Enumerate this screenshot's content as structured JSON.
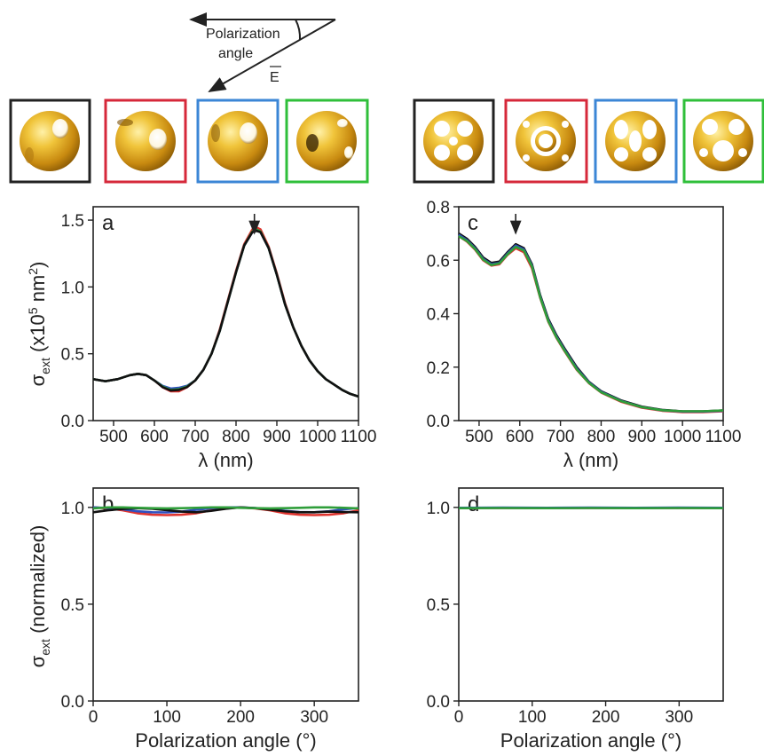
{
  "schematic": {
    "polarization_label_line1": "Polarization",
    "polarization_label_line2": "angle",
    "field_label": "E"
  },
  "thumbnails": {
    "frame_colors": [
      "#222222",
      "#d6283a",
      "#3b86d6",
      "#2fbf3a"
    ]
  },
  "colors": {
    "black": "#111111",
    "red": "#e0342f",
    "blue": "#2f4fc0",
    "green": "#2f9e3a"
  },
  "chart_data": [
    {
      "panel": "a",
      "type": "line",
      "xlabel": "λ (nm)",
      "ylabel_main": "σ",
      "ylabel_sub": "ext",
      "ylabel_rest": " (x10",
      "ylabel_sup": "5",
      "ylabel_unit": " nm",
      "ylabel_sup2": "2",
      "ylabel_end": ")",
      "xlim": [
        450,
        1100
      ],
      "ylim": [
        0,
        1.6
      ],
      "xticks": [
        500,
        600,
        700,
        800,
        900,
        1000,
        1100
      ],
      "yticks": [
        0.0,
        0.5,
        1.0,
        1.5
      ],
      "ytick_labels": [
        "0.0",
        "0.5",
        "1.0",
        "1.5"
      ],
      "arrow_x": 845,
      "series": [
        {
          "color": "#e0342f",
          "x": [
            450,
            480,
            510,
            540,
            560,
            580,
            600,
            620,
            640,
            660,
            680,
            700,
            720,
            740,
            760,
            780,
            800,
            820,
            840,
            850,
            860,
            880,
            900,
            920,
            940,
            960,
            980,
            1000,
            1020,
            1040,
            1060,
            1080,
            1100
          ],
          "y": [
            0.31,
            0.295,
            0.31,
            0.34,
            0.35,
            0.34,
            0.3,
            0.25,
            0.22,
            0.22,
            0.25,
            0.3,
            0.38,
            0.5,
            0.68,
            0.9,
            1.12,
            1.32,
            1.43,
            1.445,
            1.43,
            1.3,
            1.1,
            0.88,
            0.7,
            0.56,
            0.45,
            0.37,
            0.31,
            0.27,
            0.23,
            0.2,
            0.18
          ]
        },
        {
          "color": "#2f4fc0",
          "x": [
            450,
            480,
            510,
            540,
            560,
            580,
            600,
            620,
            640,
            660,
            680,
            700,
            720,
            740,
            760,
            780,
            800,
            820,
            840,
            850,
            860,
            880,
            900,
            920,
            940,
            960,
            980,
            1000,
            1020,
            1040,
            1060,
            1080,
            1100
          ],
          "y": [
            0.31,
            0.295,
            0.31,
            0.34,
            0.35,
            0.34,
            0.3,
            0.26,
            0.24,
            0.245,
            0.26,
            0.3,
            0.38,
            0.5,
            0.67,
            0.89,
            1.11,
            1.31,
            1.41,
            1.425,
            1.41,
            1.29,
            1.09,
            0.87,
            0.7,
            0.56,
            0.45,
            0.37,
            0.31,
            0.27,
            0.23,
            0.2,
            0.18
          ]
        },
        {
          "color": "#2f9e3a",
          "x": [
            450,
            480,
            510,
            540,
            560,
            580,
            600,
            620,
            640,
            660,
            680,
            700,
            720,
            740,
            760,
            780,
            800,
            820,
            840,
            850,
            860,
            880,
            900,
            920,
            940,
            960,
            980,
            1000,
            1020,
            1040,
            1060,
            1080,
            1100
          ],
          "y": [
            0.31,
            0.295,
            0.31,
            0.34,
            0.35,
            0.34,
            0.3,
            0.255,
            0.23,
            0.235,
            0.255,
            0.3,
            0.38,
            0.5,
            0.67,
            0.89,
            1.11,
            1.31,
            1.415,
            1.43,
            1.415,
            1.29,
            1.09,
            0.87,
            0.7,
            0.56,
            0.45,
            0.37,
            0.31,
            0.27,
            0.23,
            0.2,
            0.18
          ]
        },
        {
          "color": "#111111",
          "x": [
            450,
            480,
            510,
            540,
            560,
            580,
            600,
            620,
            640,
            660,
            680,
            700,
            720,
            740,
            760,
            780,
            800,
            820,
            840,
            850,
            860,
            880,
            900,
            920,
            940,
            960,
            980,
            1000,
            1020,
            1040,
            1060,
            1080,
            1100
          ],
          "y": [
            0.31,
            0.295,
            0.31,
            0.34,
            0.35,
            0.34,
            0.3,
            0.25,
            0.225,
            0.23,
            0.25,
            0.3,
            0.38,
            0.5,
            0.67,
            0.89,
            1.11,
            1.31,
            1.41,
            1.42,
            1.41,
            1.29,
            1.09,
            0.87,
            0.7,
            0.56,
            0.45,
            0.37,
            0.31,
            0.27,
            0.23,
            0.2,
            0.18
          ]
        }
      ]
    },
    {
      "panel": "c",
      "type": "line",
      "xlabel": "λ (nm)",
      "xlim": [
        450,
        1100
      ],
      "ylim": [
        0,
        0.8
      ],
      "xticks": [
        500,
        600,
        700,
        800,
        900,
        1000,
        1100
      ],
      "yticks": [
        0.0,
        0.2,
        0.4,
        0.6,
        0.8
      ],
      "ytick_labels": [
        "0.0",
        "0.2",
        "0.4",
        "0.6",
        "0.8"
      ],
      "arrow_x": 590,
      "series": [
        {
          "color": "#e0342f",
          "x": [
            450,
            470,
            490,
            510,
            530,
            550,
            570,
            590,
            610,
            630,
            650,
            670,
            690,
            710,
            740,
            770,
            800,
            850,
            900,
            950,
            1000,
            1050,
            1100
          ],
          "y": [
            0.69,
            0.67,
            0.64,
            0.6,
            0.58,
            0.585,
            0.62,
            0.645,
            0.63,
            0.57,
            0.46,
            0.37,
            0.31,
            0.26,
            0.19,
            0.14,
            0.105,
            0.07,
            0.048,
            0.037,
            0.032,
            0.032,
            0.035
          ]
        },
        {
          "color": "#111111",
          "x": [
            450,
            470,
            490,
            510,
            530,
            550,
            570,
            590,
            610,
            630,
            650,
            670,
            690,
            710,
            740,
            770,
            800,
            850,
            900,
            950,
            1000,
            1050,
            1100
          ],
          "y": [
            0.7,
            0.68,
            0.65,
            0.61,
            0.59,
            0.595,
            0.63,
            0.66,
            0.645,
            0.585,
            0.47,
            0.38,
            0.32,
            0.27,
            0.2,
            0.145,
            0.11,
            0.075,
            0.052,
            0.04,
            0.035,
            0.035,
            0.038
          ]
        },
        {
          "color": "#2f4fc0",
          "x": [
            450,
            470,
            490,
            510,
            530,
            550,
            570,
            590,
            610,
            630,
            650,
            670,
            690,
            710,
            740,
            770,
            800,
            850,
            900,
            950,
            1000,
            1050,
            1100
          ],
          "y": [
            0.695,
            0.675,
            0.645,
            0.605,
            0.585,
            0.59,
            0.625,
            0.655,
            0.64,
            0.58,
            0.465,
            0.375,
            0.315,
            0.265,
            0.195,
            0.143,
            0.108,
            0.073,
            0.05,
            0.039,
            0.034,
            0.034,
            0.037
          ]
        },
        {
          "color": "#2f9e3a",
          "x": [
            450,
            470,
            490,
            510,
            530,
            550,
            570,
            590,
            610,
            630,
            650,
            670,
            690,
            710,
            740,
            770,
            800,
            850,
            900,
            950,
            1000,
            1050,
            1100
          ],
          "y": [
            0.69,
            0.672,
            0.642,
            0.602,
            0.582,
            0.588,
            0.622,
            0.65,
            0.636,
            0.577,
            0.462,
            0.372,
            0.312,
            0.262,
            0.192,
            0.141,
            0.106,
            0.072,
            0.05,
            0.039,
            0.035,
            0.035,
            0.038
          ]
        }
      ]
    },
    {
      "panel": "b",
      "type": "line",
      "xlabel": "Polarization angle (°)",
      "ylabel_main": "σ",
      "ylabel_sub": "ext",
      "ylabel_rest": " (normalized)",
      "xlim": [
        0,
        360
      ],
      "ylim": [
        0,
        1.1
      ],
      "xticks": [
        0,
        100,
        200,
        300
      ],
      "yticks": [
        0.0,
        0.5,
        1.0
      ],
      "ytick_labels": [
        "0.0",
        "0.5",
        "1.0"
      ],
      "series": [
        {
          "color": "#e0342f",
          "x": [
            0,
            20,
            40,
            60,
            80,
            100,
            120,
            140,
            160,
            180,
            200,
            220,
            240,
            260,
            280,
            300,
            320,
            340,
            360
          ],
          "y": [
            1.0,
            0.995,
            0.985,
            0.97,
            0.962,
            0.96,
            0.962,
            0.97,
            0.985,
            0.995,
            1.0,
            0.995,
            0.985,
            0.97,
            0.962,
            0.96,
            0.962,
            0.97,
            0.985
          ]
        },
        {
          "color": "#2f4fc0",
          "x": [
            0,
            20,
            40,
            60,
            80,
            100,
            120,
            140,
            160,
            180,
            200,
            220,
            240,
            260,
            280,
            300,
            320,
            340,
            360
          ],
          "y": [
            1.0,
            0.997,
            0.99,
            0.98,
            0.975,
            0.974,
            0.978,
            0.988,
            0.996,
            1.0,
            1.0,
            0.997,
            0.99,
            0.982,
            0.976,
            0.975,
            0.98,
            0.99,
            0.997
          ]
        },
        {
          "color": "#111111",
          "x": [
            0,
            20,
            40,
            60,
            80,
            100,
            120,
            140,
            160,
            180,
            200,
            220,
            240,
            260,
            280,
            300,
            320,
            340,
            360
          ],
          "y": [
            0.975,
            0.985,
            0.992,
            0.996,
            0.993,
            0.986,
            0.978,
            0.975,
            0.982,
            0.993,
            1.0,
            0.996,
            0.988,
            0.98,
            0.975,
            0.975,
            0.978,
            0.976,
            0.975
          ]
        },
        {
          "color": "#2f9e3a",
          "x": [
            0,
            20,
            40,
            60,
            80,
            100,
            120,
            140,
            160,
            180,
            200,
            220,
            240,
            260,
            280,
            300,
            320,
            340,
            360
          ],
          "y": [
            0.995,
            1.0,
            1.0,
            0.998,
            0.996,
            0.995,
            0.996,
            0.998,
            1.0,
            1.0,
            0.998,
            0.996,
            0.995,
            0.996,
            0.998,
            1.0,
            1.0,
            0.998,
            0.995
          ]
        }
      ]
    },
    {
      "panel": "d",
      "type": "line",
      "xlabel": "Polarization angle (°)",
      "xlim": [
        0,
        360
      ],
      "ylim": [
        0,
        1.1
      ],
      "xticks": [
        0,
        100,
        200,
        300
      ],
      "yticks": [
        0.0,
        0.5,
        1.0
      ],
      "ytick_labels": [
        "0.0",
        "0.5",
        "1.0"
      ],
      "series": [
        {
          "color": "#e0342f",
          "x": [
            0,
            60,
            120,
            180,
            240,
            300,
            360
          ],
          "y": [
            0.998,
            0.997,
            0.998,
            0.997,
            0.998,
            0.997,
            0.998
          ]
        },
        {
          "color": "#111111",
          "x": [
            0,
            60,
            120,
            180,
            240,
            300,
            360
          ],
          "y": [
            0.997,
            0.998,
            0.997,
            0.998,
            0.997,
            0.998,
            0.997
          ]
        },
        {
          "color": "#2f4fc0",
          "x": [
            0,
            60,
            120,
            180,
            240,
            300,
            360
          ],
          "y": [
            0.998,
            0.999,
            0.998,
            0.999,
            0.998,
            0.999,
            0.998
          ]
        },
        {
          "color": "#2f9e3a",
          "x": [
            0,
            60,
            120,
            180,
            240,
            300,
            360
          ],
          "y": [
            0.996,
            0.997,
            0.996,
            0.997,
            0.996,
            0.997,
            0.996
          ]
        }
      ]
    }
  ]
}
